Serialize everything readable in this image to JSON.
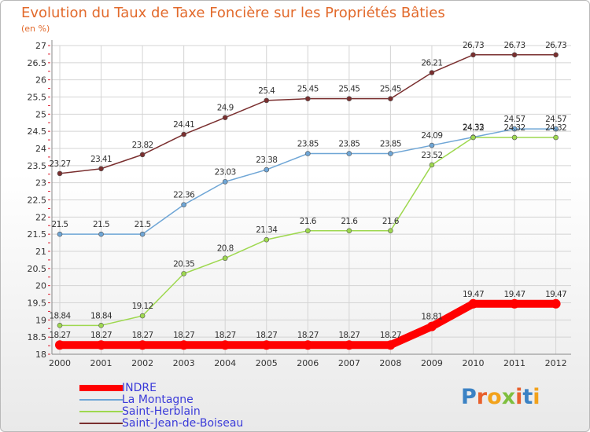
{
  "header": {
    "title": "Evolution du Taux de Taxe Foncière sur les Propriétés Bâties",
    "unit": "(en %)"
  },
  "logo": {
    "text": "Proxiti",
    "letter_colors": [
      "#3b82c4",
      "#e8602c",
      "#f2a21b",
      "#7fbf3f",
      "#e8602c",
      "#3b82c4",
      "#f2a21b"
    ]
  },
  "chart_data": {
    "type": "line",
    "categories": [
      "2000",
      "2001",
      "2002",
      "2003",
      "2004",
      "2005",
      "2006",
      "2007",
      "2008",
      "2009",
      "2010",
      "2011",
      "2012"
    ],
    "ylim": [
      18,
      27
    ],
    "yticks": [
      "18",
      "18.5",
      "19",
      "19.5",
      "20",
      "20.5",
      "21",
      "21.5",
      "22",
      "22.5",
      "23",
      "23.5",
      "24",
      "24.5",
      "25",
      "25.5",
      "26",
      "26.5",
      "27"
    ],
    "grid": true,
    "legend_position": "bottom-left",
    "series": [
      {
        "name": "INDRE",
        "color": "#ff0000",
        "values": [
          18.27,
          18.27,
          18.27,
          18.27,
          18.27,
          18.27,
          18.27,
          18.27,
          18.27,
          18.81,
          19.47,
          19.47,
          19.47
        ],
        "labels": [
          "18.27",
          "18.27",
          "18.27",
          "18.27",
          "18.27",
          "18.27",
          "18.27",
          "18.27",
          "18.27",
          "18.81",
          "19.47",
          "19.47",
          "19.47"
        ]
      },
      {
        "name": "La Montagne",
        "color": "#6fa6d6",
        "values": [
          21.5,
          21.5,
          21.5,
          22.36,
          23.03,
          23.38,
          23.85,
          23.85,
          23.85,
          24.09,
          24.33,
          24.57,
          24.57
        ],
        "labels": [
          "21.5",
          "21.5",
          "21.5",
          "22.36",
          "23.03",
          "23.38",
          "23.85",
          "23.85",
          "23.85",
          "24.09",
          "24.33",
          "24.57",
          "24.57"
        ]
      },
      {
        "name": "Saint-Herblain",
        "color": "#9ed84f",
        "values": [
          18.84,
          18.84,
          19.12,
          20.35,
          20.8,
          21.34,
          21.6,
          21.6,
          21.6,
          23.52,
          24.32,
          24.32,
          24.32
        ],
        "labels": [
          "18.84",
          "18.84",
          "19.12",
          "20.35",
          "20.8",
          "21.34",
          "21.6",
          "21.6",
          "21.6",
          "23.52",
          "24.32",
          "24.32",
          "24.32"
        ]
      },
      {
        "name": "Saint-Jean-de-Boiseau",
        "color": "#7a2f2f",
        "values": [
          23.27,
          23.41,
          23.82,
          24.41,
          24.9,
          25.4,
          25.45,
          25.45,
          25.45,
          26.21,
          26.73,
          26.73,
          26.73
        ],
        "labels": [
          "23.27",
          "23.41",
          "23.82",
          "24.41",
          "24.9",
          "25.4",
          "25.45",
          "25.45",
          "25.45",
          "26.21",
          "26.73",
          "26.73",
          "26.73"
        ]
      }
    ]
  }
}
